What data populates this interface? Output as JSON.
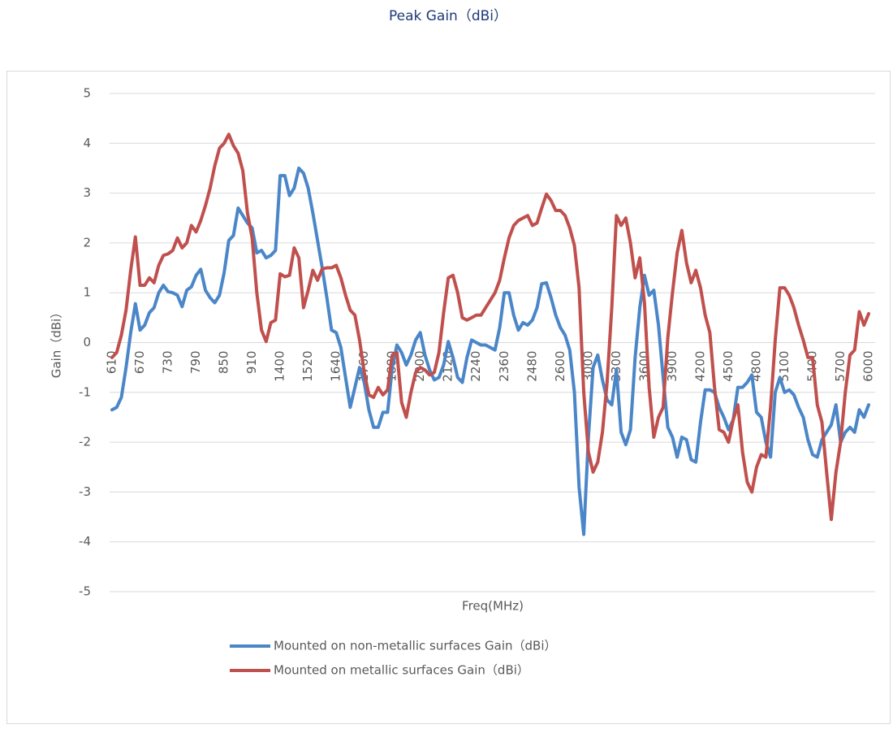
{
  "chart_data": {
    "type": "line",
    "title": "Peak Gain（dBi）",
    "x_label": "Freq(MHz)",
    "y_label": "Gain（dBi）",
    "ylim": [
      -5,
      5
    ],
    "yticks": [
      -5,
      -4,
      -3,
      -2,
      -1,
      0,
      1,
      2,
      3,
      4,
      5
    ],
    "grid": true,
    "legend": "bottom",
    "categories": [
      "610",
      null,
      null,
      null,
      null,
      null,
      "670",
      null,
      null,
      null,
      null,
      null,
      "730",
      null,
      null,
      null,
      null,
      null,
      "790",
      null,
      null,
      null,
      null,
      null,
      "850",
      null,
      null,
      null,
      null,
      null,
      "910",
      null,
      null,
      null,
      null,
      null,
      "1400",
      null,
      null,
      null,
      null,
      null,
      "1520",
      null,
      null,
      null,
      null,
      null,
      "1640",
      null,
      null,
      null,
      null,
      null,
      "1760",
      null,
      null,
      null,
      null,
      null,
      "1880",
      null,
      null,
      null,
      null,
      null,
      "2000",
      null,
      null,
      null,
      null,
      null,
      "2120",
      null,
      null,
      null,
      null,
      null,
      "2240",
      null,
      null,
      null,
      null,
      null,
      "2360",
      null,
      null,
      null,
      null,
      null,
      "2480",
      null,
      null,
      null,
      null,
      null,
      "2600",
      null,
      null,
      null,
      null,
      null,
      "3000",
      null,
      null,
      null,
      null,
      null,
      "3300",
      null,
      null,
      null,
      null,
      null,
      "3600",
      null,
      null,
      null,
      null,
      null,
      "3900",
      null,
      null,
      null,
      null,
      null,
      "4200",
      null,
      null,
      null,
      null,
      null,
      "4500",
      null,
      null,
      null,
      null,
      null,
      "4800",
      null,
      null,
      null,
      null,
      null,
      "5100",
      null,
      null,
      null,
      null,
      null,
      "5400",
      null,
      null,
      null,
      null,
      null,
      "5700",
      null,
      null,
      null,
      null,
      null,
      "6000"
    ],
    "series": [
      {
        "name": "Mounted on non-metallic surfaces Gain（dBi）",
        "color": "#4a86c8",
        "values": [
          -1.35,
          -1.3,
          -1.1,
          -0.5,
          0.2,
          0.78,
          0.25,
          0.35,
          0.6,
          0.7,
          1.0,
          1.15,
          1.02,
          1.0,
          0.95,
          0.72,
          1.05,
          1.12,
          1.35,
          1.47,
          1.05,
          0.9,
          0.8,
          0.95,
          1.4,
          2.05,
          2.15,
          2.7,
          2.55,
          2.4,
          2.3,
          1.8,
          1.85,
          1.7,
          1.75,
          1.85,
          3.35,
          3.35,
          2.95,
          3.1,
          3.5,
          3.4,
          3.1,
          2.6,
          2.05,
          1.5,
          0.9,
          0.25,
          0.2,
          -0.1,
          -0.7,
          -1.3,
          -0.9,
          -0.5,
          -0.8,
          -1.35,
          -1.7,
          -1.7,
          -1.4,
          -1.4,
          -0.5,
          -0.05,
          -0.2,
          -0.45,
          -0.25,
          0.05,
          0.2,
          -0.25,
          -0.55,
          -0.75,
          -0.7,
          -0.45,
          0.02,
          -0.3,
          -0.7,
          -0.8,
          -0.3,
          0.05,
          0.0,
          -0.05,
          -0.05,
          -0.1,
          -0.15,
          0.3,
          1.0,
          1.0,
          0.55,
          0.25,
          0.4,
          0.35,
          0.45,
          0.7,
          1.18,
          1.2,
          0.9,
          0.55,
          0.3,
          0.15,
          -0.15,
          -1.0,
          -2.9,
          -3.85,
          -1.9,
          -0.5,
          -0.25,
          -0.75,
          -1.15,
          -1.25,
          -0.55,
          -1.8,
          -2.05,
          -1.75,
          -0.3,
          0.7,
          1.35,
          0.95,
          1.05,
          0.35,
          -0.7,
          -1.7,
          -1.9,
          -2.3,
          -1.9,
          -1.95,
          -2.35,
          -2.4,
          -1.6,
          -0.95,
          -0.95,
          -1.0,
          -1.3,
          -1.5,
          -1.75,
          -1.55,
          -0.9,
          -0.9,
          -0.8,
          -0.65,
          -1.4,
          -1.5,
          -2.0,
          -2.3,
          -1.0,
          -0.7,
          -1.0,
          -0.95,
          -1.05,
          -1.3,
          -1.5,
          -1.95,
          -2.25,
          -2.3,
          -1.95,
          -1.8,
          -1.65,
          -1.25,
          -2.0,
          -1.8,
          -1.7,
          -1.8,
          -1.35,
          -1.5,
          -1.25
        ]
      },
      {
        "name": "Mounted on metallic surfaces Gain（dBi）",
        "color": "#c0504d",
        "values": [
          -0.3,
          -0.2,
          0.15,
          0.65,
          1.45,
          2.12,
          1.15,
          1.15,
          1.3,
          1.2,
          1.55,
          1.75,
          1.78,
          1.85,
          2.1,
          1.9,
          2.0,
          2.35,
          2.22,
          2.45,
          2.75,
          3.1,
          3.55,
          3.9,
          4.0,
          4.18,
          3.95,
          3.8,
          3.45,
          2.6,
          2.1,
          1.0,
          0.25,
          0.02,
          0.4,
          0.45,
          1.38,
          1.32,
          1.35,
          1.9,
          1.7,
          0.7,
          1.05,
          1.45,
          1.25,
          1.48,
          1.5,
          1.5,
          1.55,
          1.3,
          0.95,
          0.65,
          0.55,
          0.05,
          -0.6,
          -1.05,
          -1.1,
          -0.9,
          -1.05,
          -0.95,
          -0.25,
          -0.2,
          -1.2,
          -1.5,
          -1.0,
          -0.6,
          -0.5,
          -0.55,
          -0.65,
          -0.6,
          -0.2,
          0.6,
          1.3,
          1.35,
          1.0,
          0.5,
          0.45,
          0.5,
          0.55,
          0.55,
          0.7,
          0.85,
          1.0,
          1.25,
          1.7,
          2.1,
          2.35,
          2.45,
          2.5,
          2.55,
          2.35,
          2.4,
          2.7,
          2.98,
          2.85,
          2.65,
          2.65,
          2.55,
          2.3,
          1.95,
          1.1,
          -1.0,
          -2.2,
          -2.6,
          -2.4,
          -1.8,
          -0.8,
          0.7,
          2.55,
          2.35,
          2.5,
          2.0,
          1.3,
          1.7,
          0.8,
          -0.9,
          -1.9,
          -1.5,
          -1.3,
          0.1,
          1.0,
          1.8,
          2.25,
          1.6,
          1.2,
          1.45,
          1.1,
          0.55,
          0.2,
          -0.9,
          -1.75,
          -1.8,
          -2.0,
          -1.55,
          -1.25,
          -2.2,
          -2.8,
          -3.0,
          -2.5,
          -2.25,
          -2.3,
          -1.3,
          0.05,
          1.1,
          1.1,
          0.95,
          0.7,
          0.35,
          0.05,
          -0.3,
          -0.3,
          -1.25,
          -1.6,
          -2.6,
          -3.55,
          -2.6,
          -2.0,
          -1.0,
          -0.25,
          -0.15,
          0.62,
          0.35,
          0.58
        ]
      }
    ]
  }
}
